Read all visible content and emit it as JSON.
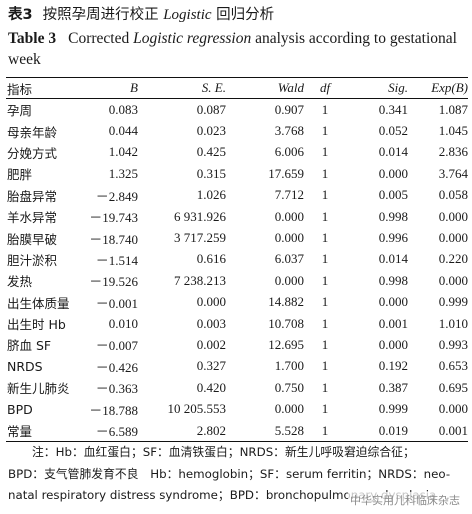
{
  "table": {
    "label_cn": "表3",
    "caption_cn_prefix": "按照孕周进行校正",
    "caption_cn_italic": "Logistic",
    "caption_cn_suffix": "回归分析",
    "label_en": "Table 3",
    "caption_en_prefix": "Corrected",
    "caption_en_italic": "Logistic regression",
    "caption_en_suffix": "analysis according to gestational week",
    "headers": [
      "指标",
      "B",
      "S. E.",
      "Wald",
      "df",
      "Sig.",
      "Exp(B)"
    ],
    "rows": [
      [
        "孕周",
        "0.083",
        "0.087",
        "0.907",
        "1",
        "0.341",
        "1.087"
      ],
      [
        "母亲年龄",
        "0.044",
        "0.023",
        "3.768",
        "1",
        "0.052",
        "1.045"
      ],
      [
        "分娩方式",
        "1.042",
        "0.425",
        "6.006",
        "1",
        "0.014",
        "2.836"
      ],
      [
        "肥胖",
        "1.325",
        "0.315",
        "17.659",
        "1",
        "0.000",
        "3.764"
      ],
      [
        "胎盘异常",
        "－2.849",
        "1.026",
        "7.712",
        "1",
        "0.005",
        "0.058"
      ],
      [
        "羊水异常",
        "－19.743",
        "6 931.926",
        "0.000",
        "1",
        "0.998",
        "0.000"
      ],
      [
        "胎膜早破",
        "－18.740",
        "3 717.259",
        "0.000",
        "1",
        "0.996",
        "0.000"
      ],
      [
        "胆汁淤积",
        "－1.514",
        "0.616",
        "6.037",
        "1",
        "0.014",
        "0.220"
      ],
      [
        "发热",
        "－19.526",
        "7 238.213",
        "0.000",
        "1",
        "0.998",
        "0.000"
      ],
      [
        "出生体质量",
        "－0.001",
        "0.000",
        "14.882",
        "1",
        "0.000",
        "0.999"
      ],
      [
        "出生时 Hb",
        "0.010",
        "0.003",
        "10.708",
        "1",
        "0.001",
        "1.010"
      ],
      [
        "脐血 SF",
        "－0.007",
        "0.002",
        "12.695",
        "1",
        "0.000",
        "0.993"
      ],
      [
        "NRDS",
        "－0.426",
        "0.327",
        "1.700",
        "1",
        "0.192",
        "0.653"
      ],
      [
        "新生儿肺炎",
        "－0.363",
        "0.420",
        "0.750",
        "1",
        "0.387",
        "0.695"
      ],
      [
        "BPD",
        "－18.788",
        "10 205.553",
        "0.000",
        "1",
        "0.999",
        "0.000"
      ],
      [
        "常量",
        "－6.589",
        "2.802",
        "5.528",
        "1",
        "0.019",
        "0.001"
      ]
    ]
  },
  "note": {
    "line1": "注：Hb：血红蛋白；SF：血清铁蛋白；NRDS：新生儿呼吸窘迫综合征；",
    "line2": "BPD：支气管肺发育不良　Hb：hemoglobin；SF：serum ferritin；NRDS：neo-",
    "line3": "natal respiratory distress syndrome；BPD：bronchopulmonary dysplasia"
  },
  "watermark": "中华实用儿科临床杂志"
}
